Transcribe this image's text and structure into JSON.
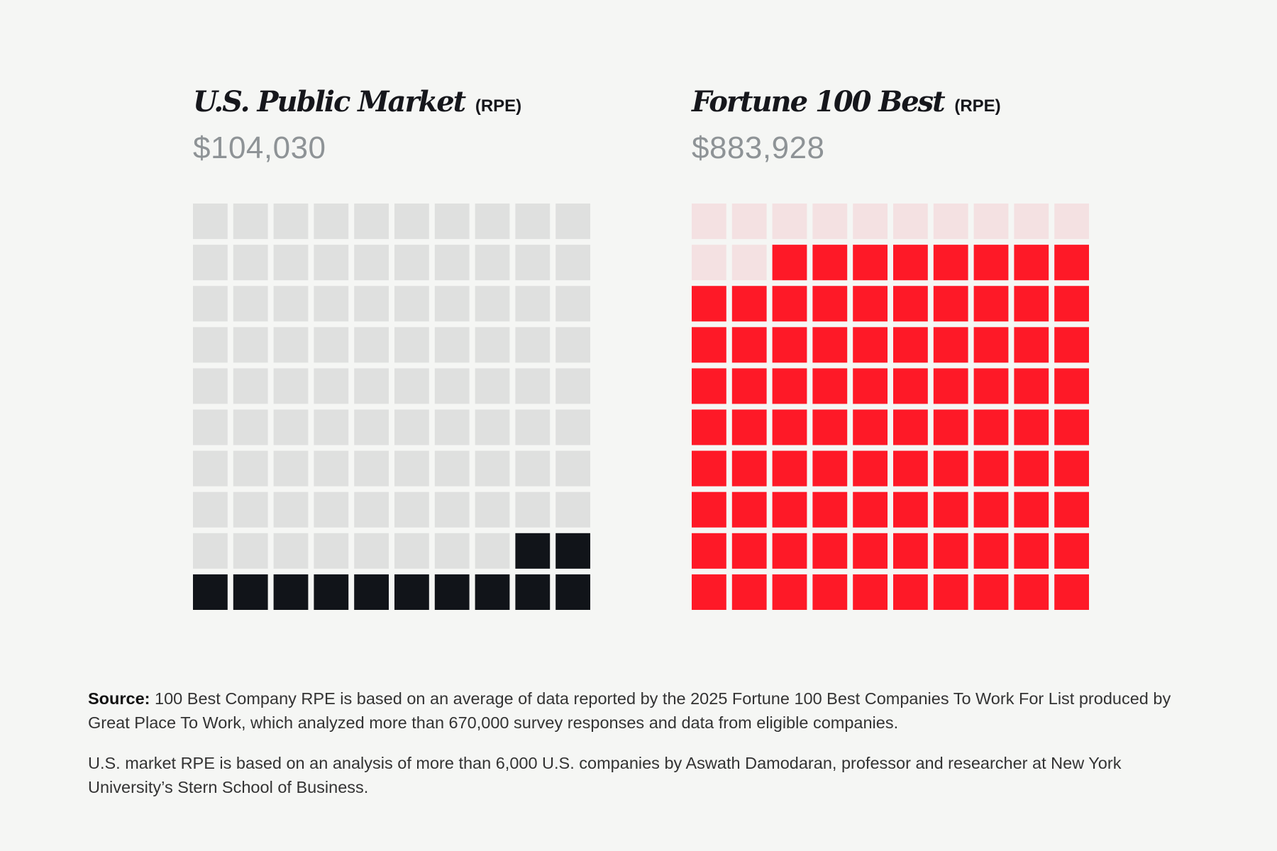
{
  "chart_data": [
    {
      "type": "waffle",
      "title": "U.S. Public Market",
      "title_suffix": "(RPE)",
      "value_label": "$104,030",
      "grid": {
        "rows": 10,
        "cols": 10
      },
      "filled_units": 12,
      "total_units": 100,
      "colors": {
        "filled": "#111419",
        "empty": "#dfe0df"
      }
    },
    {
      "type": "waffle",
      "title": "Fortune 100 Best",
      "title_suffix": "(RPE)",
      "value_label": "$883,928",
      "grid": {
        "rows": 10,
        "cols": 10
      },
      "filled_units": 88,
      "total_units": 100,
      "colors": {
        "filled": "#fe1927",
        "empty": "#f4e1e2"
      }
    }
  ],
  "notes": {
    "source_label": "Source:",
    "source_text": " 100 Best Company RPE is based on an average of data reported by the 2025 Fortune 100 Best Companies To Work For List produced by Great Place To Work, which analyzed more than 670,000 survey responses and data from eligible companies.",
    "market_text": "U.S. market RPE is based on an analysis of more than 6,000 U.S. companies by Aswath Damodaran, professor and researcher at New York University’s Stern School of Business."
  }
}
